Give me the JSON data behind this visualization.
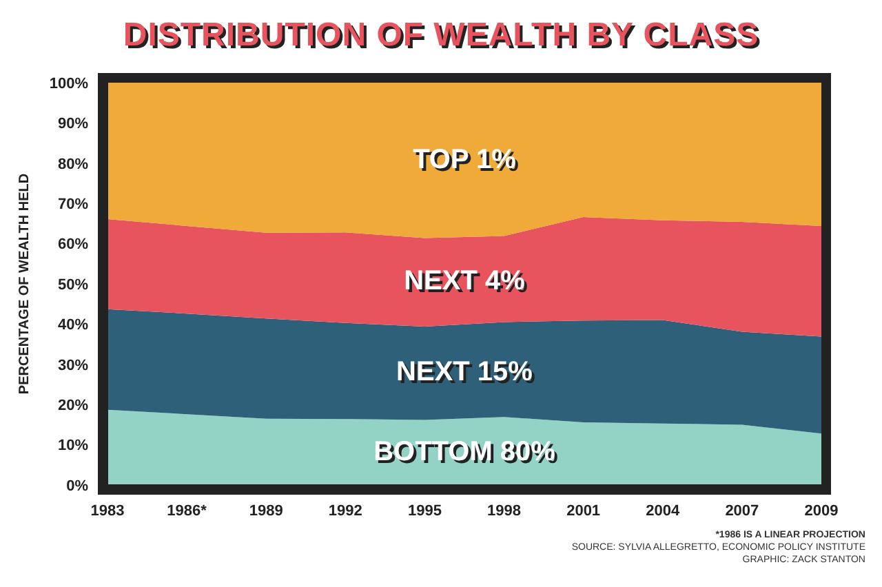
{
  "chart_data": {
    "type": "area",
    "title": "DISTRIBUTION OF WEALTH BY CLASS",
    "ylabel": "PERCENTAGE OF WEALTH HELD",
    "categories": [
      "1983",
      "1986*",
      "1989",
      "1992",
      "1995",
      "1998",
      "2001",
      "2004",
      "2007",
      "2009"
    ],
    "stacked": true,
    "series": [
      {
        "name": "BOTTOM 80%",
        "color": "#92d3c5",
        "values": [
          18.7,
          17.6,
          16.5,
          16.4,
          16.2,
          16.9,
          15.6,
          15.3,
          15.0,
          12.8
        ]
      },
      {
        "name": "NEXT 15%",
        "color": "#2e6179",
        "values": [
          25.0,
          25.0,
          24.9,
          23.9,
          23.2,
          23.6,
          25.3,
          25.7,
          23.1,
          24.1
        ]
      },
      {
        "name": "NEXT 4%",
        "color": "#e8545d",
        "values": [
          22.4,
          21.8,
          21.3,
          22.5,
          22.0,
          21.4,
          25.7,
          24.8,
          27.3,
          27.5
        ]
      },
      {
        "name": "TOP 1%",
        "color": "#f0aa3a",
        "values": [
          33.9,
          35.6,
          37.3,
          37.2,
          38.6,
          38.1,
          33.4,
          34.2,
          34.6,
          35.6
        ]
      }
    ],
    "ylim": [
      0,
      100
    ],
    "yticks": [
      {
        "value": 0,
        "label": "0%"
      },
      {
        "value": 10,
        "label": "10%"
      },
      {
        "value": 20,
        "label": "20%"
      },
      {
        "value": 30,
        "label": "30%"
      },
      {
        "value": 40,
        "label": "40%"
      },
      {
        "value": 50,
        "label": "50%"
      },
      {
        "value": 60,
        "label": "60%"
      },
      {
        "value": 70,
        "label": "70%"
      },
      {
        "value": 80,
        "label": "80%"
      },
      {
        "value": 90,
        "label": "90%"
      },
      {
        "value": 100,
        "label": "100%"
      }
    ],
    "annotations": [
      "*1986 IS A LINEAR PROJECTION",
      "SOURCE: SYLVIA ALLEGRETTO, ECONOMIC POLICY INSTITUTE",
      "GRAPHIC: ZACK STANTON"
    ]
  }
}
